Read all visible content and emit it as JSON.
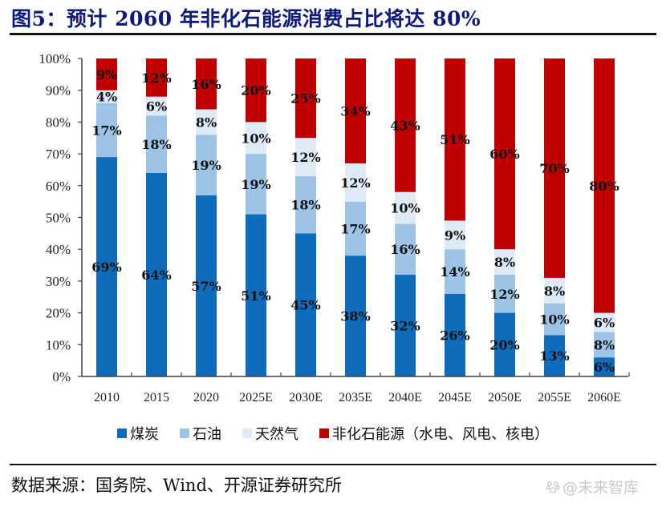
{
  "title": "图5：预计 2060 年非化石能源消费占比将达 80%",
  "source": "数据来源：国务院、Wind、开源证券研究所",
  "watermark": {
    "icon": "paw-icon",
    "text": "@未来智库"
  },
  "colors": {
    "coal": "#0f6cbd",
    "oil": "#9dc3e6",
    "gas": "#deebf7",
    "non_fossil": "#c00000",
    "axis": "#404040",
    "title": "#0d1a7a"
  },
  "chart_data": {
    "type": "bar",
    "stacked": true,
    "title": "预计 2060 年非化石能源消费占比将达 80%",
    "xlabel": "",
    "ylabel": "",
    "ylim": [
      0,
      100
    ],
    "yticks": [
      "0%",
      "10%",
      "20%",
      "30%",
      "40%",
      "50%",
      "60%",
      "70%",
      "80%",
      "90%",
      "100%"
    ],
    "grid": false,
    "legend_position": "bottom",
    "categories": [
      "2010",
      "2015",
      "2020",
      "2025E",
      "2030E",
      "2035E",
      "2040E",
      "2045E",
      "2050E",
      "2055E",
      "2060E"
    ],
    "series": [
      {
        "name": "煤炭",
        "key": "coal",
        "values": [
          69,
          64,
          57,
          51,
          45,
          38,
          32,
          26,
          20,
          13,
          6
        ]
      },
      {
        "name": "石油",
        "key": "oil",
        "values": [
          17,
          18,
          19,
          19,
          18,
          17,
          16,
          14,
          12,
          10,
          8
        ]
      },
      {
        "name": "天然气",
        "key": "gas",
        "values": [
          4,
          6,
          8,
          10,
          12,
          12,
          10,
          9,
          8,
          8,
          6
        ]
      },
      {
        "name": "非化石能源（水电、风电、核电）",
        "key": "non_fossil",
        "values": [
          9,
          12,
          16,
          20,
          25,
          34,
          43,
          51,
          60,
          70,
          80
        ]
      }
    ],
    "data_labels": true
  }
}
